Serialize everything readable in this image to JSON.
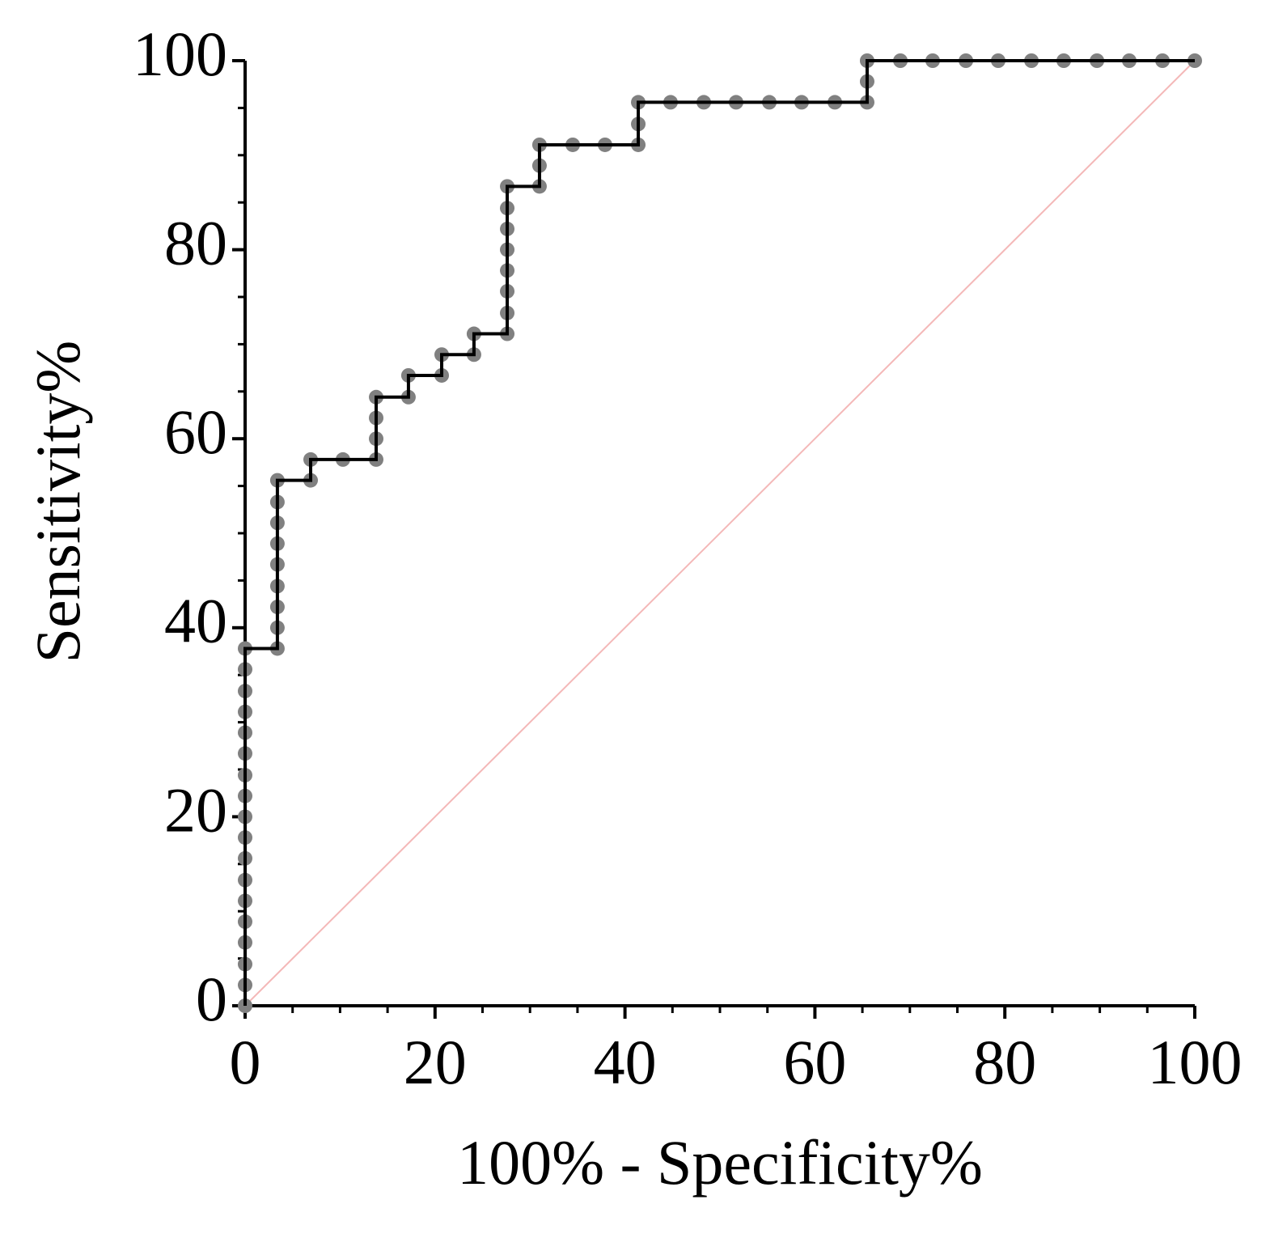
{
  "chart_data": {
    "type": "line",
    "xlabel": "100% - Specificity%",
    "ylabel": "Sensitivity%",
    "x": [
      0,
      0,
      0,
      0,
      0,
      0,
      0,
      0,
      0,
      0,
      0,
      0,
      0,
      0,
      0,
      0,
      0,
      0,
      3.4,
      3.4,
      3.4,
      3.4,
      3.4,
      3.4,
      3.4,
      3.4,
      3.4,
      6.9,
      6.9,
      10.3,
      13.8,
      13.8,
      13.8,
      13.8,
      17.2,
      17.2,
      20.7,
      20.7,
      24.1,
      24.1,
      27.6,
      27.6,
      27.6,
      27.6,
      27.6,
      27.6,
      27.6,
      27.6,
      31.0,
      31.0,
      31.0,
      34.5,
      37.9,
      41.4,
      41.4,
      41.4,
      44.8,
      48.3,
      51.7,
      55.2,
      58.6,
      62.1,
      65.5,
      65.5,
      65.5,
      69.0,
      72.4,
      75.9,
      79.3,
      82.8,
      86.2,
      89.7,
      93.1,
      96.6,
      100
    ],
    "series": [
      {
        "color": "#000000",
        "marker_color": "#808080",
        "values": [
          0,
          2.2,
          4.4,
          6.7,
          8.9,
          11.1,
          13.3,
          15.6,
          17.8,
          20,
          22.2,
          24.4,
          26.7,
          28.9,
          31.1,
          33.3,
          35.6,
          37.8,
          37.8,
          40,
          42.2,
          44.4,
          46.7,
          48.9,
          51.1,
          53.3,
          55.6,
          55.6,
          57.8,
          57.8,
          57.8,
          60,
          62.2,
          64.4,
          64.4,
          66.7,
          66.7,
          68.9,
          68.9,
          71.1,
          71.1,
          73.3,
          75.6,
          77.8,
          80,
          82.2,
          84.4,
          86.7,
          86.7,
          88.9,
          91.1,
          91.1,
          91.1,
          91.1,
          93.3,
          95.6,
          95.6,
          95.6,
          95.6,
          95.6,
          95.6,
          95.6,
          95.6,
          97.8,
          100,
          100,
          100,
          100,
          100,
          100,
          100,
          100,
          100,
          100,
          100
        ]
      }
    ],
    "xlim": [
      0,
      100
    ],
    "ylim": [
      0,
      100
    ],
    "xticks": [
      0,
      20,
      40,
      60,
      80,
      100
    ],
    "yticks": [
      0,
      20,
      40,
      60,
      80,
      100
    ],
    "xminorticks": [
      5,
      10,
      15,
      25,
      30,
      35,
      45,
      50,
      55,
      65,
      70,
      75,
      85,
      90,
      95
    ],
    "yminorticks": [
      5,
      10,
      15,
      25,
      30,
      35,
      45,
      50,
      55,
      65,
      70,
      75,
      85,
      90,
      95
    ],
    "reference_line": true,
    "reference_color": "#f4b8b8"
  }
}
